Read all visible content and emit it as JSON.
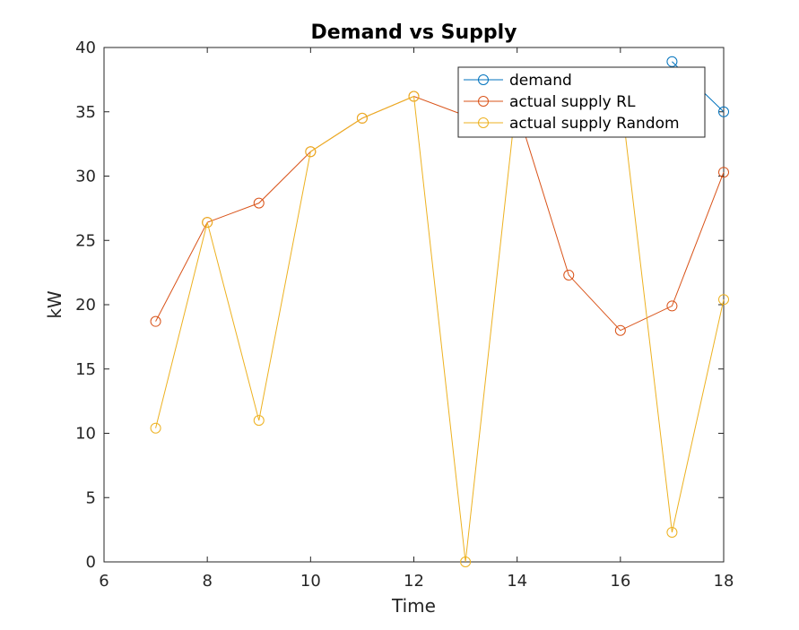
{
  "chart_data": {
    "type": "line",
    "title": "Demand vs Supply",
    "xlabel": "Time",
    "ylabel": "kW",
    "xlim": [
      6,
      18
    ],
    "ylim": [
      0,
      40
    ],
    "xticks": [
      6,
      8,
      10,
      12,
      14,
      16,
      18
    ],
    "yticks": [
      0,
      5,
      10,
      15,
      20,
      25,
      30,
      35,
      40
    ],
    "grid": false,
    "legend_position": "top-right",
    "series": [
      {
        "name": "demand",
        "color": "#0072BD",
        "x": [
          17,
          18
        ],
        "values": [
          38.9,
          35.0
        ]
      },
      {
        "name": "actual supply RL",
        "color": "#D95319",
        "x": [
          7,
          8,
          9,
          10,
          11,
          12,
          13,
          14,
          15,
          16,
          17,
          18
        ],
        "values": [
          18.7,
          26.4,
          27.9,
          31.9,
          34.5,
          36.2,
          34.7,
          35.2,
          22.3,
          18.0,
          19.9,
          30.3
        ]
      },
      {
        "name": "actual supply Random",
        "color": "#EDB120",
        "x": [
          7,
          8,
          9,
          10,
          11,
          12,
          13,
          14,
          15,
          16,
          17,
          18
        ],
        "values": [
          10.4,
          26.4,
          11.0,
          31.9,
          34.5,
          36.2,
          0.0,
          36.5,
          36.5,
          36.5,
          2.3,
          20.4
        ]
      }
    ]
  }
}
